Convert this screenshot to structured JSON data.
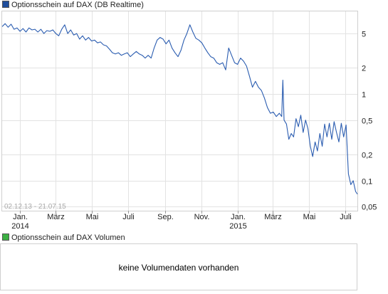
{
  "legend": {
    "price_label": "Optionsschein auf DAX  (DB Realtime)",
    "price_color": "#1f4e9c",
    "volume_label": "Optionsschein auf DAX  Volumen",
    "volume_color": "#3cb043"
  },
  "date_range": "02.12.13 - 21.07.15",
  "volume": {
    "message": "keine Volumendaten vorhanden"
  },
  "chart_data": {
    "type": "line",
    "title": "Optionsschein auf DAX  (DB Realtime)",
    "xlabel": "",
    "ylabel": "",
    "y_scale": "log",
    "ylim": [
      0.045,
      9.0
    ],
    "xlim": [
      "2013-12-02",
      "2015-07-21"
    ],
    "grid": true,
    "line_color": "#2a5cb0",
    "y_ticks": [
      {
        "value": 5,
        "label": "5"
      },
      {
        "value": 2,
        "label": "2"
      },
      {
        "value": 1,
        "label": "1"
      },
      {
        "value": 0.5,
        "label": "0,5"
      },
      {
        "value": 0.2,
        "label": "0,2"
      },
      {
        "value": 0.1,
        "label": "0,1"
      },
      {
        "value": 0.05,
        "label": "0,05"
      }
    ],
    "x_ticks": [
      {
        "date": "2014-01-01",
        "label": "Jan.",
        "label2": "2014"
      },
      {
        "date": "2014-03-01",
        "label": "März"
      },
      {
        "date": "2014-05-01",
        "label": "Mai"
      },
      {
        "date": "2014-07-01",
        "label": "Juli"
      },
      {
        "date": "2014-09-01",
        "label": "Sep."
      },
      {
        "date": "2014-11-01",
        "label": "Nov."
      },
      {
        "date": "2015-01-01",
        "label": "Jan.",
        "label2": "2015"
      },
      {
        "date": "2015-03-01",
        "label": "März"
      },
      {
        "date": "2015-05-01",
        "label": "Mai"
      },
      {
        "date": "2015-07-01",
        "label": "Juli"
      }
    ],
    "series": [
      {
        "values": [
          [
            "2013-12-02",
            6.0
          ],
          [
            "2013-12-07",
            6.5
          ],
          [
            "2013-12-12",
            5.9
          ],
          [
            "2013-12-17",
            6.4
          ],
          [
            "2013-12-22",
            5.6
          ],
          [
            "2013-12-27",
            5.8
          ],
          [
            "2014-01-01",
            5.3
          ],
          [
            "2014-01-06",
            5.7
          ],
          [
            "2014-01-11",
            5.2
          ],
          [
            "2014-01-16",
            5.8
          ],
          [
            "2014-01-21",
            5.5
          ],
          [
            "2014-01-26",
            5.6
          ],
          [
            "2014-01-31",
            5.2
          ],
          [
            "2014-02-05",
            5.6
          ],
          [
            "2014-02-10",
            5.0
          ],
          [
            "2014-02-15",
            5.4
          ],
          [
            "2014-02-20",
            5.3
          ],
          [
            "2014-02-25",
            5.5
          ],
          [
            "2014-03-02",
            5.0
          ],
          [
            "2014-03-07",
            4.7
          ],
          [
            "2014-03-12",
            5.6
          ],
          [
            "2014-03-17",
            6.3
          ],
          [
            "2014-03-22",
            5.0
          ],
          [
            "2014-03-27",
            5.5
          ],
          [
            "2014-04-01",
            4.8
          ],
          [
            "2014-04-06",
            5.0
          ],
          [
            "2014-04-11",
            4.3
          ],
          [
            "2014-04-16",
            4.7
          ],
          [
            "2014-04-21",
            4.2
          ],
          [
            "2014-04-26",
            4.5
          ],
          [
            "2014-05-01",
            4.1
          ],
          [
            "2014-05-06",
            4.2
          ],
          [
            "2014-05-11",
            3.9
          ],
          [
            "2014-05-16",
            4.0
          ],
          [
            "2014-05-21",
            3.7
          ],
          [
            "2014-05-26",
            3.6
          ],
          [
            "2014-05-31",
            3.3
          ],
          [
            "2014-06-05",
            3.0
          ],
          [
            "2014-06-10",
            2.9
          ],
          [
            "2014-06-15",
            3.0
          ],
          [
            "2014-06-20",
            2.8
          ],
          [
            "2014-06-25",
            2.9
          ],
          [
            "2014-06-30",
            3.0
          ],
          [
            "2014-07-05",
            2.7
          ],
          [
            "2014-07-10",
            2.9
          ],
          [
            "2014-07-15",
            3.1
          ],
          [
            "2014-07-20",
            2.9
          ],
          [
            "2014-07-25",
            2.8
          ],
          [
            "2014-07-30",
            2.6
          ],
          [
            "2014-08-04",
            2.8
          ],
          [
            "2014-08-09",
            2.6
          ],
          [
            "2014-08-14",
            3.4
          ],
          [
            "2014-08-19",
            4.2
          ],
          [
            "2014-08-24",
            4.5
          ],
          [
            "2014-08-29",
            4.3
          ],
          [
            "2014-09-03",
            3.8
          ],
          [
            "2014-09-08",
            4.2
          ],
          [
            "2014-09-13",
            3.4
          ],
          [
            "2014-09-18",
            3.0
          ],
          [
            "2014-09-23",
            2.7
          ],
          [
            "2014-09-28",
            3.2
          ],
          [
            "2014-10-03",
            4.2
          ],
          [
            "2014-10-08",
            5.0
          ],
          [
            "2014-10-13",
            6.3
          ],
          [
            "2014-10-18",
            5.2
          ],
          [
            "2014-10-23",
            4.4
          ],
          [
            "2014-10-28",
            4.2
          ],
          [
            "2014-11-02",
            3.9
          ],
          [
            "2014-11-07",
            3.4
          ],
          [
            "2014-11-12",
            3.0
          ],
          [
            "2014-11-17",
            2.7
          ],
          [
            "2014-11-22",
            2.6
          ],
          [
            "2014-11-27",
            2.3
          ],
          [
            "2014-12-02",
            2.2
          ],
          [
            "2014-12-07",
            2.3
          ],
          [
            "2014-12-12",
            1.9
          ],
          [
            "2014-12-17",
            3.4
          ],
          [
            "2014-12-22",
            2.8
          ],
          [
            "2014-12-27",
            2.3
          ],
          [
            "2015-01-01",
            2.2
          ],
          [
            "2015-01-06",
            2.6
          ],
          [
            "2015-01-11",
            2.4
          ],
          [
            "2015-01-16",
            2.1
          ],
          [
            "2015-01-21",
            1.6
          ],
          [
            "2015-01-26",
            1.2
          ],
          [
            "2015-01-31",
            1.4
          ],
          [
            "2015-02-05",
            1.2
          ],
          [
            "2015-02-10",
            1.1
          ],
          [
            "2015-02-15",
            0.9
          ],
          [
            "2015-02-20",
            0.7
          ],
          [
            "2015-02-25",
            0.6
          ],
          [
            "2015-03-02",
            0.62
          ],
          [
            "2015-03-07",
            0.55
          ],
          [
            "2015-03-12",
            0.6
          ],
          [
            "2015-03-16",
            0.55
          ],
          [
            "2015-03-18",
            1.45
          ],
          [
            "2015-03-20",
            0.5
          ],
          [
            "2015-03-24",
            0.45
          ],
          [
            "2015-03-28",
            0.3
          ],
          [
            "2015-04-01",
            0.35
          ],
          [
            "2015-04-05",
            0.32
          ],
          [
            "2015-04-09",
            0.52
          ],
          [
            "2015-04-13",
            0.42
          ],
          [
            "2015-04-17",
            0.57
          ],
          [
            "2015-04-21",
            0.36
          ],
          [
            "2015-04-25",
            0.5
          ],
          [
            "2015-04-29",
            0.4
          ],
          [
            "2015-05-03",
            0.25
          ],
          [
            "2015-05-07",
            0.19
          ],
          [
            "2015-05-11",
            0.28
          ],
          [
            "2015-05-15",
            0.22
          ],
          [
            "2015-05-19",
            0.35
          ],
          [
            "2015-05-23",
            0.25
          ],
          [
            "2015-05-27",
            0.45
          ],
          [
            "2015-05-31",
            0.32
          ],
          [
            "2015-06-04",
            0.46
          ],
          [
            "2015-06-08",
            0.3
          ],
          [
            "2015-06-12",
            0.48
          ],
          [
            "2015-06-16",
            0.36
          ],
          [
            "2015-06-20",
            0.28
          ],
          [
            "2015-06-24",
            0.46
          ],
          [
            "2015-06-28",
            0.32
          ],
          [
            "2015-07-02",
            0.44
          ],
          [
            "2015-07-06",
            0.12
          ],
          [
            "2015-07-10",
            0.09
          ],
          [
            "2015-07-14",
            0.1
          ],
          [
            "2015-07-18",
            0.075
          ],
          [
            "2015-07-21",
            0.07
          ]
        ]
      }
    ]
  }
}
